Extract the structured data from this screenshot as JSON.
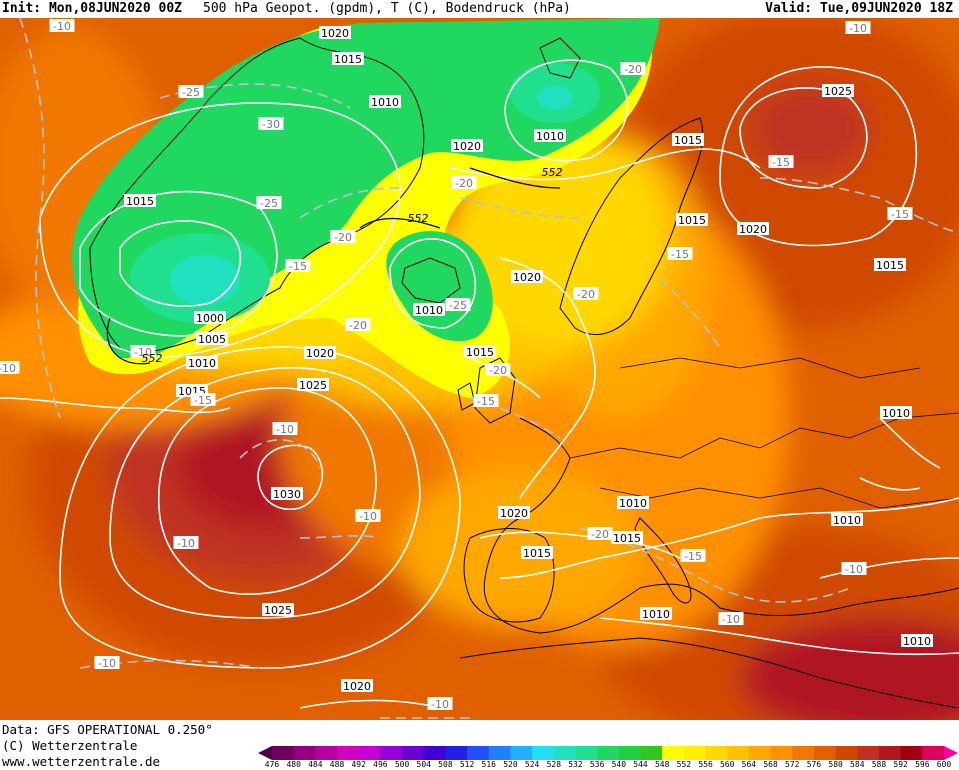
{
  "header": {
    "init": "Init: Mon,08JUN2020 00Z",
    "title": "500 hPa Geopot. (gpdm), T (C), Bodendruck (hPa)",
    "valid": "Valid: Tue,09JUN2020 18Z"
  },
  "footer": {
    "data": "Data: GFS OPERATIONAL 0.250°",
    "copyright": "(C) Wetterzentrale",
    "url": "www.wetterzentrale.de"
  },
  "colorbar": {
    "labels": [
      "476",
      "480",
      "484",
      "488",
      "492",
      "496",
      "500",
      "504",
      "508",
      "512",
      "516",
      "520",
      "524",
      "528",
      "532",
      "536",
      "540",
      "544",
      "548",
      "552",
      "556",
      "560",
      "564",
      "568",
      "572",
      "576",
      "580",
      "584",
      "588",
      "592",
      "596",
      "600"
    ],
    "colors": [
      "#4b0042",
      "#6e005e",
      "#96007e",
      "#b4009f",
      "#d400c0",
      "#c400d6",
      "#9400d6",
      "#6a00d6",
      "#4000d6",
      "#2020e6",
      "#2050ff",
      "#2080ff",
      "#20b0ff",
      "#20e0f0",
      "#20e0c0",
      "#20e090",
      "#20d860",
      "#20d040",
      "#30c820",
      "#ffff00",
      "#fff000",
      "#ffd800",
      "#ffc000",
      "#ffa800",
      "#ff9000",
      "#f07800",
      "#e06000",
      "#d04800",
      "#c03020",
      "#b01820",
      "#a00010",
      "#e0005a",
      "#ff00a0"
    ]
  },
  "labels": {
    "isobars": [
      {
        "text": "1020"
      },
      {
        "text": "1015"
      },
      {
        "text": "1010"
      },
      {
        "text": "1010"
      },
      {
        "text": "1015"
      },
      {
        "text": "1025"
      },
      {
        "text": "1020"
      },
      {
        "text": "1015"
      },
      {
        "text": "1020"
      },
      {
        "text": "1015"
      },
      {
        "text": "1015"
      },
      {
        "text": "1020"
      },
      {
        "text": "1010"
      },
      {
        "text": "1015"
      },
      {
        "text": "1000"
      },
      {
        "text": "1005"
      },
      {
        "text": "1010"
      },
      {
        "text": "1020"
      },
      {
        "text": "1015"
      },
      {
        "text": "1025"
      },
      {
        "text": "1030"
      },
      {
        "text": "1010"
      },
      {
        "text": "1010"
      },
      {
        "text": "1020"
      },
      {
        "text": "1015"
      },
      {
        "text": "1015"
      },
      {
        "text": "1010"
      },
      {
        "text": "1025"
      },
      {
        "text": "1010"
      },
      {
        "text": "1020"
      },
      {
        "text": "1010"
      }
    ],
    "temps": [
      {
        "text": "-10"
      },
      {
        "text": "-25"
      },
      {
        "text": "-30"
      },
      {
        "text": "-20"
      },
      {
        "text": "-15"
      },
      {
        "text": "-25"
      },
      {
        "text": "-20"
      },
      {
        "text": "-15"
      },
      {
        "text": "-20"
      },
      {
        "text": "-25"
      },
      {
        "text": "-20"
      },
      {
        "text": "-15"
      },
      {
        "text": "-15"
      },
      {
        "text": "-15"
      },
      {
        "text": "-10"
      },
      {
        "text": "-20"
      },
      {
        "text": "-10"
      },
      {
        "text": "-20"
      },
      {
        "text": "-15"
      },
      {
        "text": "-10"
      },
      {
        "text": "-10"
      },
      {
        "text": "-10"
      },
      {
        "text": "-20"
      },
      {
        "text": "-15"
      },
      {
        "text": "-10"
      },
      {
        "text": "-10"
      },
      {
        "text": "-10"
      },
      {
        "text": "-10"
      },
      {
        "text": "-10"
      }
    ],
    "heights": [
      {
        "text": "552"
      },
      {
        "text": "552"
      },
      {
        "text": "552"
      }
    ]
  }
}
